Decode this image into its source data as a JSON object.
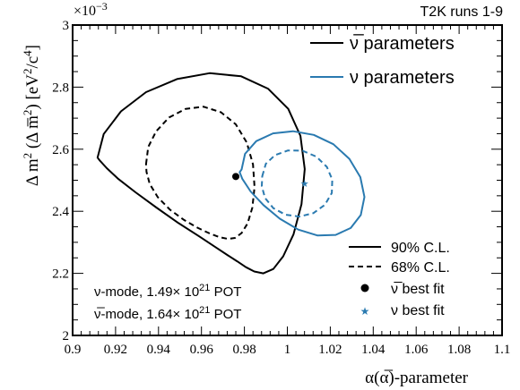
{
  "header": {
    "exponent_base": "×10",
    "exponent_power": "−3",
    "run_label": "T2K runs 1-9"
  },
  "chart_data": {
    "type": "contour",
    "title": "",
    "xlabel": "α(α̅)-parameter",
    "ylabel_prefix": "Δ m",
    "ylabel_mid": " (Δ m̅",
    "ylabel_unit": ") [eV",
    "ylabel_unit2": "/c",
    "ylabel_end": "]",
    "x_range": [
      0.9,
      1.1
    ],
    "y_range": [
      2.0,
      3.0
    ],
    "y_multiplier": "1e-3",
    "x_ticks": [
      "0.9",
      "0.92",
      "0.94",
      "0.96",
      "0.98",
      "1",
      "1.02",
      "1.04",
      "1.06",
      "1.08",
      "1.1"
    ],
    "y_ticks": [
      "2",
      "2.2",
      "2.4",
      "2.6",
      "2.8",
      "3"
    ],
    "colors": {
      "antinu": "#000000",
      "nu": "#2a7ab0"
    },
    "series": [
      {
        "name": "ν̅ 90% C.L.",
        "color_key": "antinu",
        "style": "solid",
        "x": [
          0.9116,
          0.9145,
          0.9225,
          0.9342,
          0.9486,
          0.9638,
          0.9785,
          0.991,
          1.0004,
          1.0061,
          1.0081,
          1.0066,
          1.0029,
          0.9981,
          0.9935,
          0.9888,
          0.9846,
          0.9807,
          0.9766,
          0.9723,
          0.967,
          0.959,
          0.9493,
          0.939,
          0.9293,
          0.9213,
          0.9159,
          0.9127,
          0.9116
        ],
        "y": [
          2.573,
          2.649,
          2.722,
          2.784,
          2.826,
          2.845,
          2.835,
          2.795,
          2.73,
          2.643,
          2.536,
          2.423,
          2.326,
          2.255,
          2.214,
          2.2,
          2.206,
          2.22,
          2.239,
          2.258,
          2.282,
          2.319,
          2.362,
          2.412,
          2.461,
          2.504,
          2.539,
          2.563,
          2.573
        ]
      },
      {
        "name": "ν̅ 68% C.L.",
        "color_key": "antinu",
        "style": "dashed",
        "x": [
          0.9342,
          0.9352,
          0.9389,
          0.9449,
          0.9526,
          0.961,
          0.9691,
          0.976,
          0.9811,
          0.984,
          0.9847,
          0.9837,
          0.9815,
          0.9787,
          0.9756,
          0.9724,
          0.9686,
          0.964,
          0.9584,
          0.9519,
          0.9454,
          0.9397,
          0.9359,
          0.9344,
          0.9342
        ],
        "y": [
          2.552,
          2.607,
          2.658,
          2.702,
          2.73,
          2.737,
          2.719,
          2.68,
          2.622,
          2.551,
          2.478,
          2.412,
          2.361,
          2.33,
          2.314,
          2.311,
          2.316,
          2.328,
          2.346,
          2.372,
          2.405,
          2.445,
          2.488,
          2.527,
          2.552
        ]
      },
      {
        "name": "ν 90% C.L.",
        "color_key": "nu",
        "style": "solid",
        "x": [
          0.9787,
          0.9803,
          0.9855,
          0.9933,
          1.0026,
          1.0123,
          1.0214,
          1.0289,
          1.034,
          1.0359,
          1.0342,
          1.0295,
          1.0225,
          1.0141,
          1.0051,
          0.9965,
          0.9889,
          0.9829,
          0.979,
          0.9778,
          0.9787
        ],
        "y": [
          2.535,
          2.585,
          2.626,
          2.651,
          2.658,
          2.646,
          2.616,
          2.569,
          2.51,
          2.446,
          2.388,
          2.346,
          2.324,
          2.322,
          2.341,
          2.376,
          2.42,
          2.464,
          2.505,
          2.526,
          2.535
        ]
      },
      {
        "name": "ν 68% C.L.",
        "color_key": "nu",
        "style": "dashed",
        "x": [
          0.9883,
          0.99,
          0.9943,
          1.0003,
          1.0071,
          1.0135,
          1.0184,
          1.0209,
          1.0207,
          1.0175,
          1.0121,
          1.0056,
          0.9991,
          0.9935,
          0.9896,
          0.9881,
          0.9883
        ],
        "y": [
          2.513,
          2.553,
          2.581,
          2.596,
          2.595,
          2.576,
          2.543,
          2.502,
          2.459,
          2.421,
          2.394,
          2.383,
          2.389,
          2.41,
          2.443,
          2.481,
          2.513
        ]
      }
    ],
    "best_fits": [
      {
        "name": "ν̅ best fit",
        "color_key": "antinu",
        "marker": "circle",
        "x": 0.976,
        "y": 2.512
      },
      {
        "name": "ν best fit",
        "color_key": "nu",
        "marker": "star",
        "x": 1.008,
        "y": 2.49
      }
    ],
    "legend": {
      "top": [
        {
          "label": "ν̅ parameters",
          "color_key": "antinu"
        },
        {
          "label": "ν parameters",
          "color_key": "nu"
        }
      ],
      "bottom": [
        {
          "label": "90% C.L.",
          "style": "solid"
        },
        {
          "label": "68% C.L.",
          "style": "dashed"
        },
        {
          "label": "ν̅ best fit",
          "marker": "circle"
        },
        {
          "label": "ν best fit",
          "marker": "star"
        }
      ]
    },
    "annotations": [
      {
        "prefix": "ν-mode, 1.49× 10",
        "power": "21",
        "suffix": " POT"
      },
      {
        "prefix": "ν̅-mode, 1.64× 10",
        "power": "21",
        "suffix": " POT"
      }
    ]
  }
}
